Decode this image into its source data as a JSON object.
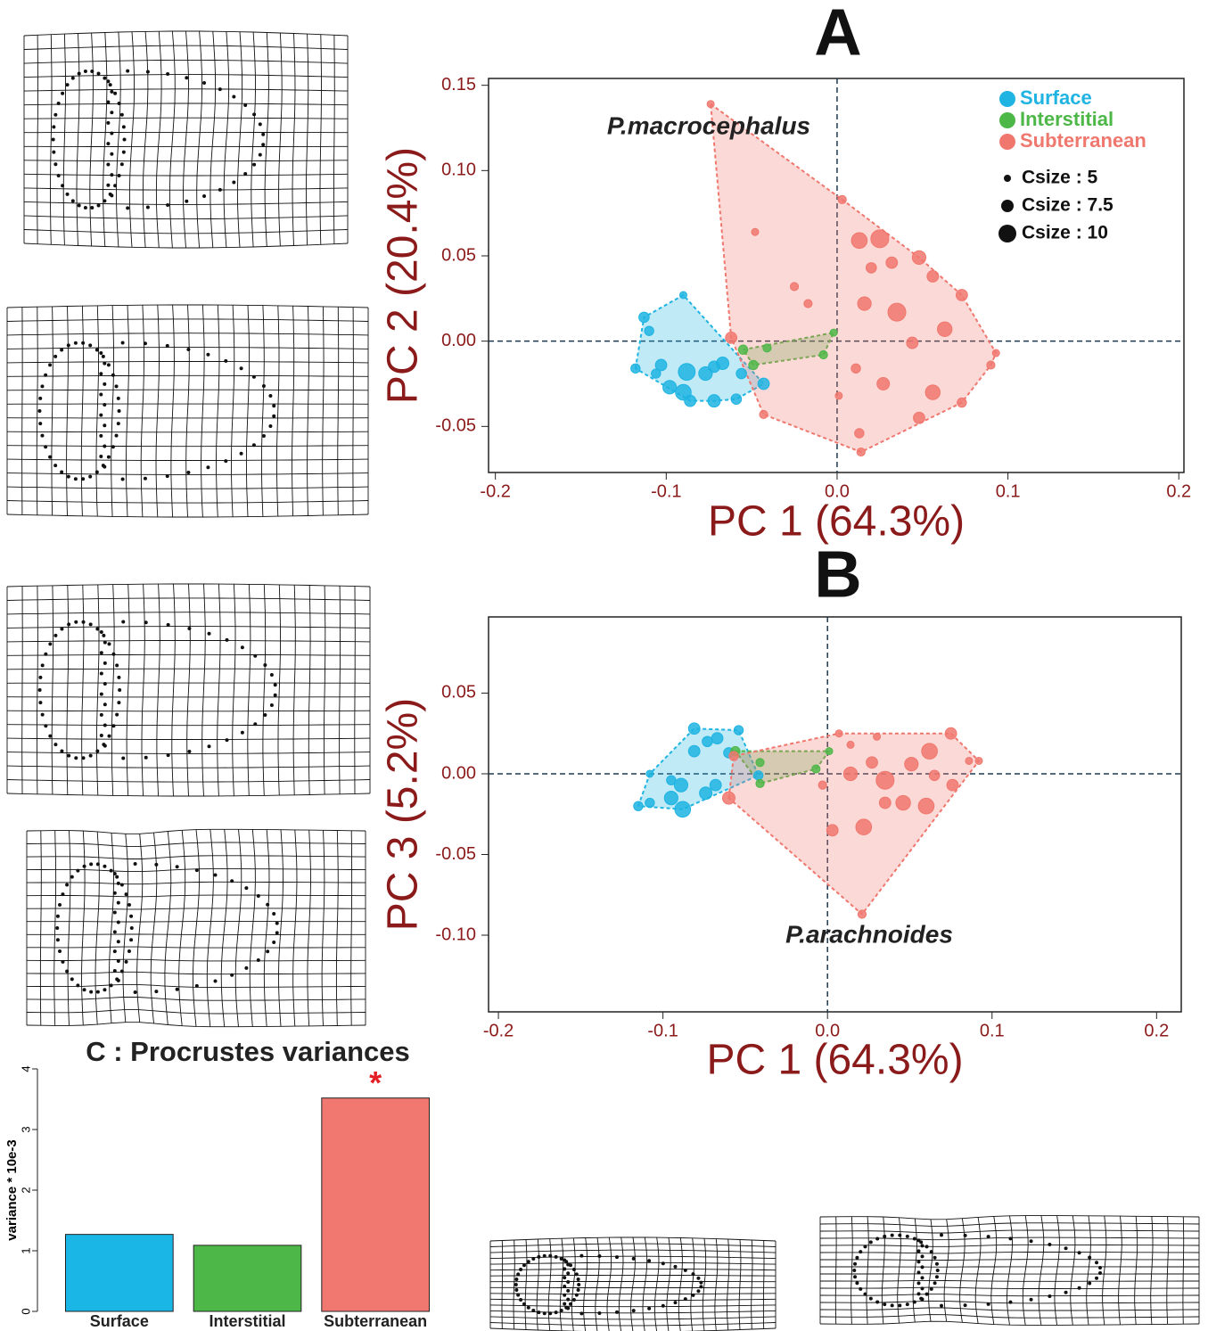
{
  "chart_data": [
    {
      "type": "scatter",
      "panel_label": "A",
      "xlabel": "PC 1 (64.3%)",
      "ylabel": "PC 2 (20.4%)",
      "annotation": "P.macrocephalus",
      "xlim": [
        -0.204,
        0.203
      ],
      "ylim": [
        -0.077,
        0.154
      ],
      "xticks": [
        -0.2,
        -0.1,
        {
          "value": 0,
          "label": "0.0"
        },
        0.1,
        0.2
      ],
      "yticks": [
        -0.05,
        {
          "value": 0,
          "label": "0.00"
        },
        0.05,
        {
          "value": 0.1,
          "label": "0.10"
        },
        0.15
      ],
      "zero_lines": true,
      "hulls": true,
      "legend": "top-right",
      "size_legend": [
        {
          "label": "Csize : 5",
          "value": 5
        },
        {
          "label": "Csize : 7.5",
          "value": 7.5
        },
        {
          "label": "Csize : 10",
          "value": 10
        }
      ],
      "series": [
        {
          "name": "Surface",
          "color": "#1fb4e2",
          "x": [
            -0.09,
            -0.113,
            -0.11,
            -0.118,
            -0.103,
            -0.098,
            -0.09,
            -0.088,
            -0.077,
            -0.072,
            -0.067,
            -0.086,
            -0.072,
            -0.059,
            -0.056,
            -0.043,
            -0.106
          ],
          "y": [
            0.027,
            0.014,
            0.006,
            -0.016,
            -0.014,
            -0.027,
            -0.03,
            -0.018,
            -0.019,
            -0.015,
            -0.013,
            -0.035,
            -0.035,
            -0.034,
            -0.019,
            -0.025,
            -0.019
          ],
          "sizes": [
            5,
            6.5,
            6,
            6,
            7,
            8,
            9,
            9.5,
            8,
            7,
            7.5,
            7,
            7.5,
            6.5,
            6.5,
            7,
            6
          ]
        },
        {
          "name": "Interstitial",
          "color": "#4db748",
          "x": [
            -0.055,
            -0.041,
            -0.008,
            -0.002,
            -0.049
          ],
          "y": [
            -0.005,
            -0.004,
            -0.008,
            0.005,
            -0.014
          ],
          "sizes": [
            6,
            5.5,
            5.5,
            5,
            6
          ]
        },
        {
          "name": "Subterranean",
          "color": "#f0776e",
          "x": [
            -0.074,
            0.003,
            -0.048,
            0.013,
            0.025,
            0.048,
            0.056,
            0.073,
            0.035,
            0.016,
            0.063,
            0.093,
            0.09,
            0.044,
            0.011,
            0.027,
            0.056,
            0.073,
            0.048,
            0.013,
            0.014,
            -0.043,
            -0.062,
            -0.025,
            -0.017,
            0.02,
            0.032,
            0.001
          ],
          "y": [
            0.139,
            0.083,
            0.064,
            0.059,
            0.06,
            0.049,
            0.038,
            0.027,
            0.017,
            0.022,
            0.007,
            -0.007,
            -0.014,
            -0.001,
            -0.016,
            -0.025,
            -0.03,
            -0.036,
            -0.045,
            -0.054,
            -0.065,
            -0.043,
            0.002,
            0.032,
            0.022,
            0.043,
            0.046,
            -0.032
          ],
          "sizes": [
            5,
            5.5,
            5,
            9,
            10,
            8,
            7,
            7,
            10,
            8,
            8.5,
            5,
            5.5,
            7,
            6,
            7.5,
            8.5,
            6,
            7,
            6,
            5.5,
            5.5,
            7,
            5.5,
            5.5,
            6.5,
            7,
            5
          ]
        }
      ]
    },
    {
      "type": "scatter",
      "panel_label": "B",
      "xlabel": "PC 1 (64.3%)",
      "ylabel": "PC 3 (5.2%)",
      "annotation": "P.arachnoides",
      "xlim": [
        -0.206,
        0.215
      ],
      "ylim": [
        -0.1475,
        0.0972
      ],
      "xticks": [
        -0.2,
        -0.1,
        {
          "value": 0,
          "label": "0.0"
        },
        0.1,
        0.2
      ],
      "yticks": [
        {
          "value": -0.1,
          "label": "-0.10"
        },
        -0.05,
        {
          "value": 0,
          "label": "0.00"
        },
        0.05
      ],
      "zero_lines": true,
      "hulls": true,
      "series": [
        {
          "name": "Surface",
          "color": "#1fb4e2",
          "x": [
            -0.115,
            -0.108,
            -0.108,
            -0.095,
            -0.088,
            -0.089,
            -0.081,
            -0.081,
            -0.073,
            -0.067,
            -0.06,
            -0.054,
            -0.074,
            -0.068,
            -0.042,
            -0.095
          ],
          "y": [
            -0.02,
            0.0,
            -0.018,
            -0.015,
            -0.022,
            -0.007,
            0.014,
            0.028,
            0.02,
            0.022,
            0.013,
            0.027,
            -0.012,
            -0.007,
            -0.001,
            -0.004
          ],
          "sizes": [
            6,
            5,
            6,
            8,
            9,
            8,
            7,
            7,
            6.5,
            7,
            6.5,
            6,
            7.5,
            7,
            6,
            6
          ]
        },
        {
          "name": "Interstitial",
          "color": "#4db748",
          "x": [
            -0.056,
            -0.041,
            -0.041,
            -0.007,
            0.001
          ],
          "y": [
            0.014,
            0.007,
            -0.006,
            0.003,
            0.014
          ],
          "sizes": [
            6,
            5.5,
            5.5,
            5.5,
            5
          ]
        },
        {
          "name": "Subterranean",
          "color": "#f0776e",
          "x": [
            0.021,
            0.003,
            0.022,
            -0.06,
            -0.057,
            0.007,
            0.03,
            0.075,
            0.062,
            0.086,
            0.092,
            0.035,
            0.014,
            0.027,
            0.051,
            0.065,
            0.046,
            0.06,
            0.076,
            -0.003,
            0.035,
            0.014
          ],
          "y": [
            -0.087,
            -0.035,
            -0.033,
            -0.015,
            0.011,
            0.025,
            0.023,
            0.025,
            0.014,
            0.008,
            0.008,
            -0.004,
            0.0,
            0.007,
            0.006,
            -0.001,
            -0.018,
            -0.02,
            -0.007,
            -0.007,
            -0.018,
            0.018
          ],
          "sizes": [
            5.5,
            7,
            9,
            7.5,
            6,
            5,
            5,
            7,
            9,
            5,
            5,
            10,
            8,
            7,
            8,
            6.5,
            8.5,
            9,
            7,
            5.5,
            7,
            5
          ]
        }
      ]
    },
    {
      "type": "bar",
      "title": "C : Procrustes variances",
      "ylabel": "variance * 10e-3",
      "categories": [
        "Surface",
        "Interstitial",
        "Subterranean"
      ],
      "values": [
        1.27,
        1.09,
        3.52
      ],
      "colors": [
        "#1ab7e6",
        "#4db748",
        "#f07870"
      ],
      "annotation": "*",
      "annotation_color": "#e31e24",
      "ylim": [
        0,
        4
      ],
      "yticks": [
        0,
        1,
        2,
        3,
        4
      ]
    }
  ]
}
